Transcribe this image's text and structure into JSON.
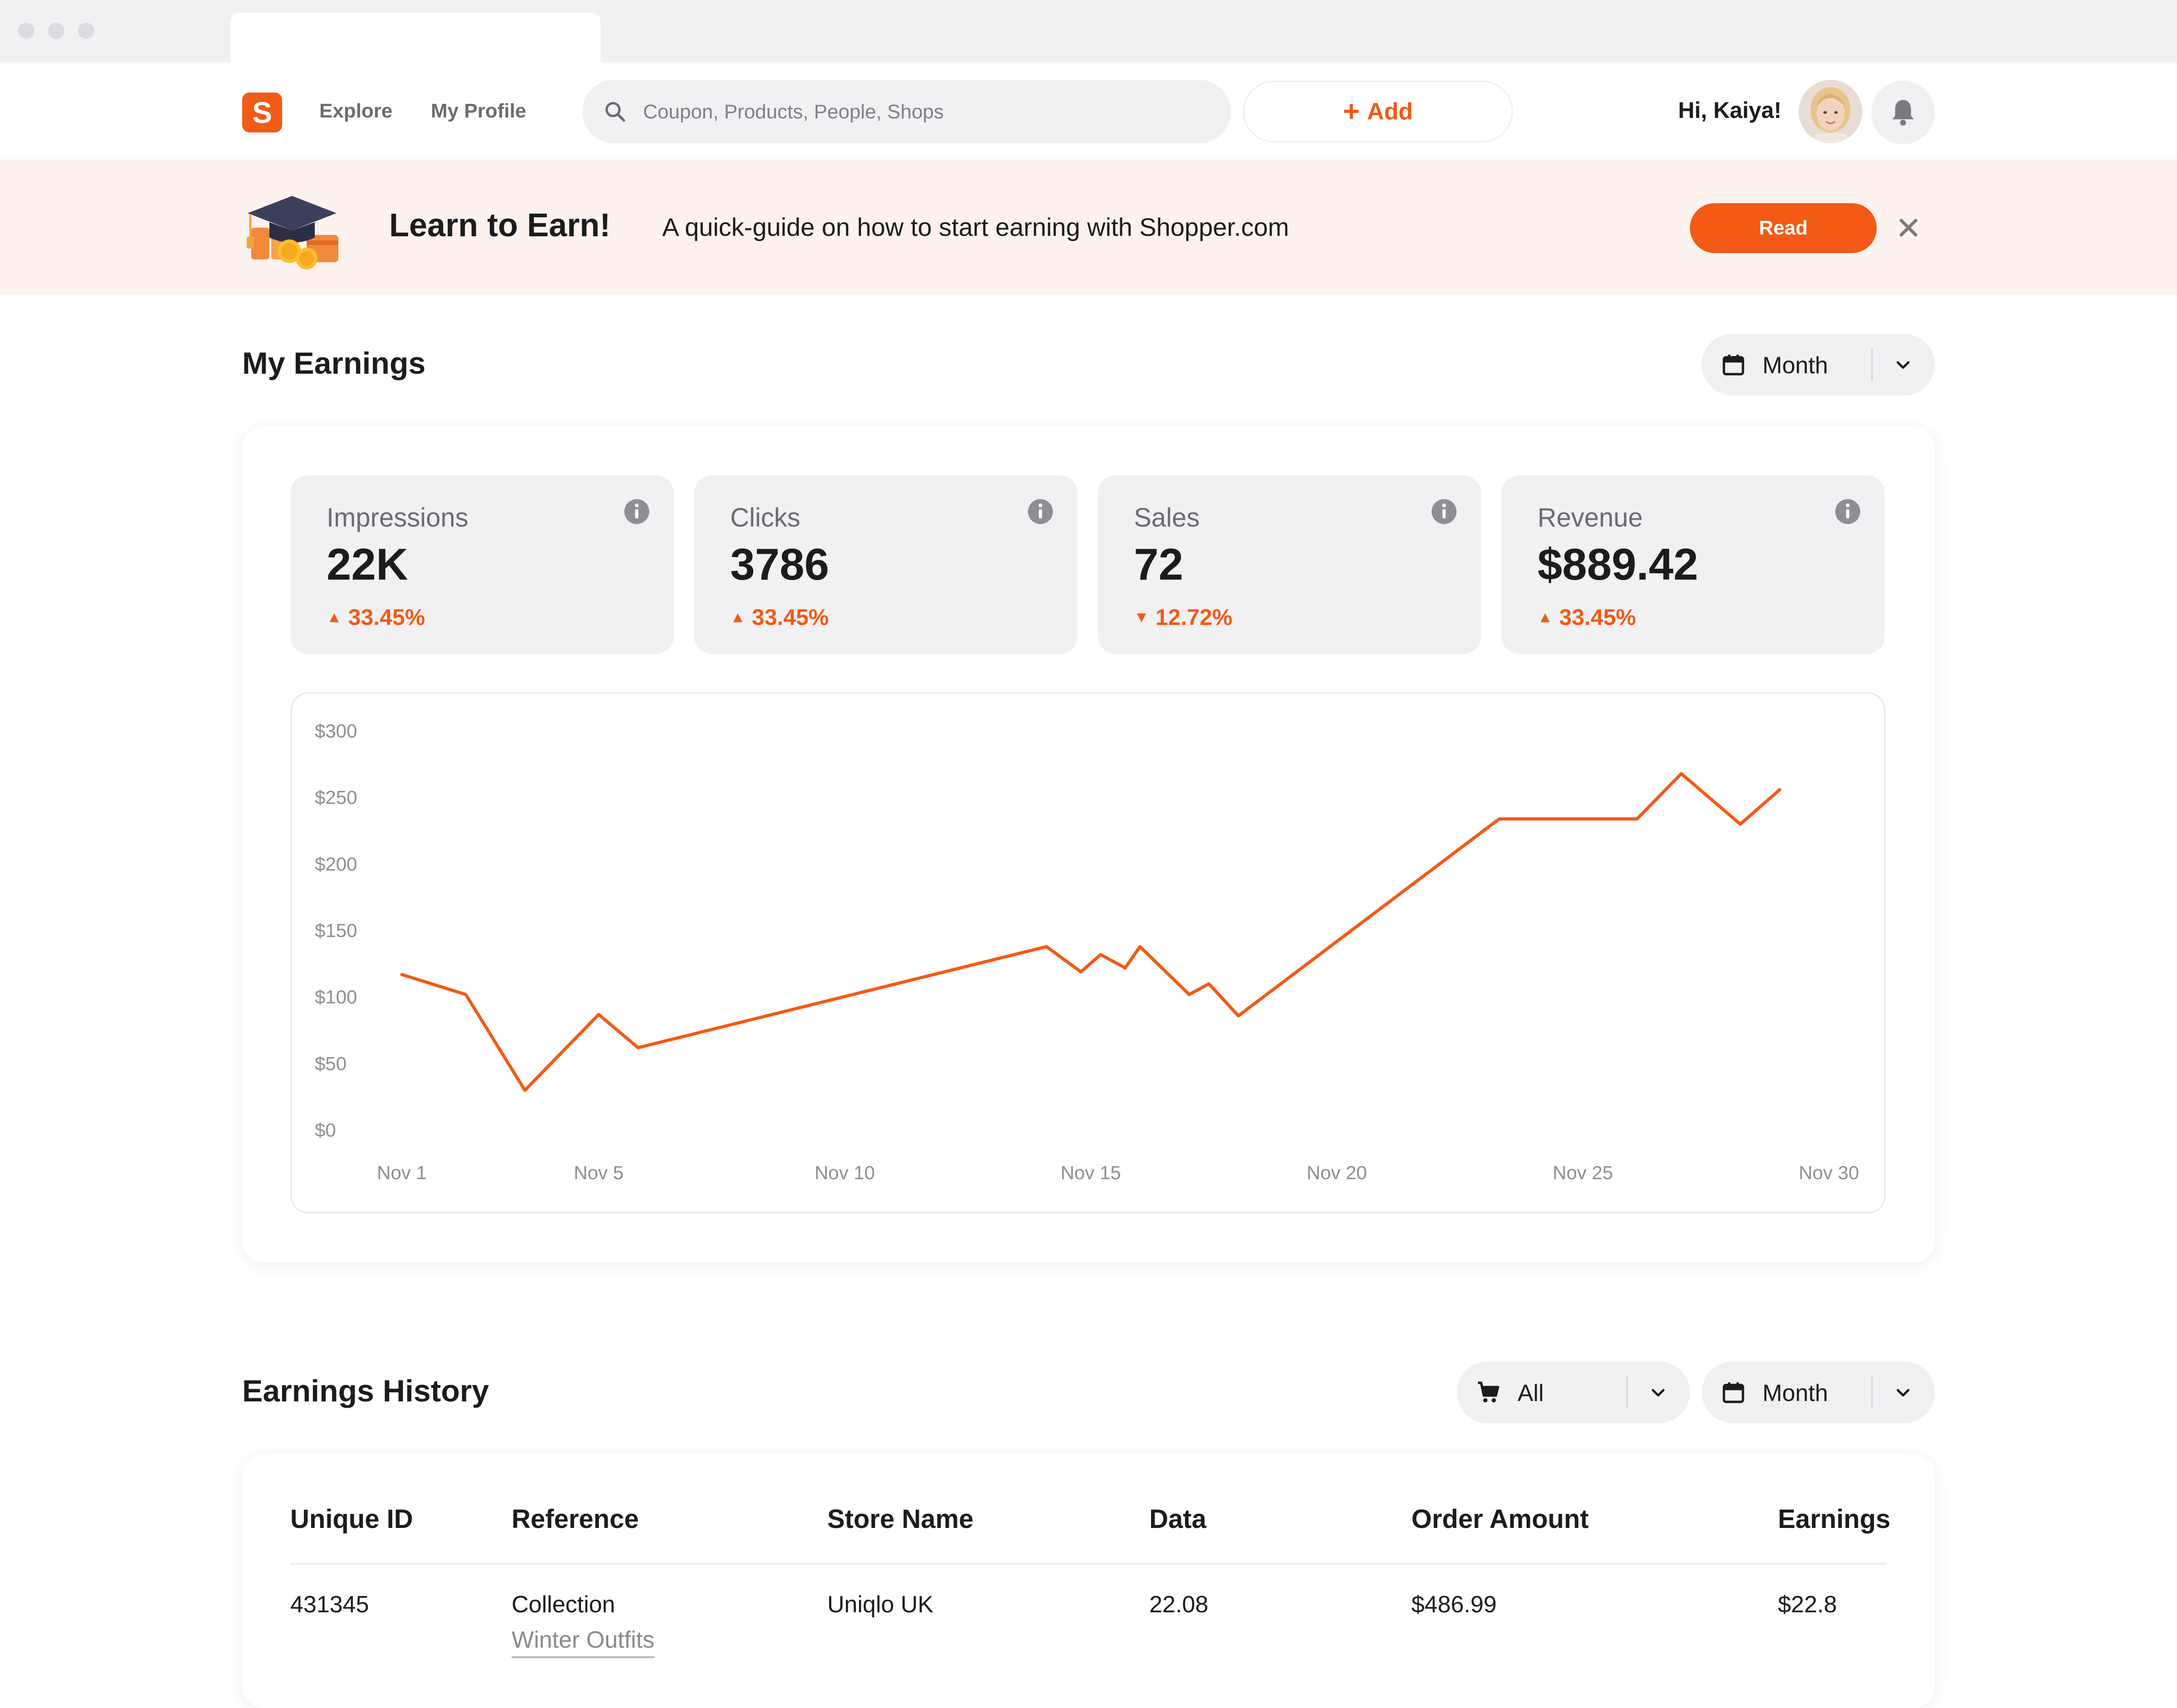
{
  "colors": {
    "accent": "#f25a16",
    "banner_bg": "#fdf2ee",
    "muted_bg": "#f1f1f3",
    "text": "#1c1c1e",
    "muted_text": "#6b6b70"
  },
  "nav": {
    "logo_letter": "S",
    "links": [
      "Explore",
      "My Profile"
    ],
    "search_placeholder": "Coupon, Products, People, Shops",
    "add_label": "Add",
    "greeting": "Hi, Kaiya!"
  },
  "banner": {
    "title": "Learn to Earn!",
    "text": "A quick-guide on how to start earning with Shopper.com",
    "button_label": "Read"
  },
  "earnings": {
    "title": "My Earnings",
    "period": "Month",
    "stats": [
      {
        "label": "Impressions",
        "value": "22K",
        "change": "33.45%",
        "direction": "up"
      },
      {
        "label": "Clicks",
        "value": "3786",
        "change": "33.45%",
        "direction": "up"
      },
      {
        "label": "Sales",
        "value": "72",
        "change": "12.72%",
        "direction": "down"
      },
      {
        "label": "Revenue",
        "value": "$889.42",
        "change": "33.45%",
        "direction": "up"
      }
    ]
  },
  "chart_data": {
    "type": "line",
    "x_ticks": [
      "Nov 1",
      "Nov 5",
      "Nov 10",
      "Nov 15",
      "Nov 20",
      "Nov 25",
      "Nov 30"
    ],
    "y_ticks": [
      "$300",
      "$250",
      "$200",
      "$150",
      "$100",
      "$50",
      "$0"
    ],
    "ylim": [
      0,
      300
    ],
    "series": [
      {
        "color": "#f25a16",
        "points": [
          [
            1,
            117
          ],
          [
            2.3,
            102
          ],
          [
            3.5,
            30
          ],
          [
            5.0,
            87
          ],
          [
            5.8,
            62
          ],
          [
            14.1,
            138
          ],
          [
            14.8,
            119
          ],
          [
            15.2,
            132
          ],
          [
            15.7,
            122
          ],
          [
            16.0,
            138
          ],
          [
            17.0,
            102
          ],
          [
            17.4,
            110
          ],
          [
            18.0,
            86
          ],
          [
            23.3,
            234
          ],
          [
            26.1,
            234
          ],
          [
            27.0,
            268
          ],
          [
            28.2,
            230
          ],
          [
            29.0,
            256
          ]
        ]
      }
    ]
  },
  "history": {
    "title": "Earnings History",
    "filter_label": "All",
    "period": "Month",
    "columns": [
      "Unique ID",
      "Reference",
      "Store Name",
      "Data",
      "Order Amount",
      "Earnings"
    ],
    "rows": [
      {
        "id": "431345",
        "reference": "Collection",
        "reference_sub": "Winter Outfits",
        "store": "Uniqlo UK",
        "data": "22.08",
        "order_amount": "$486.99",
        "earnings": "$22.8"
      }
    ]
  }
}
